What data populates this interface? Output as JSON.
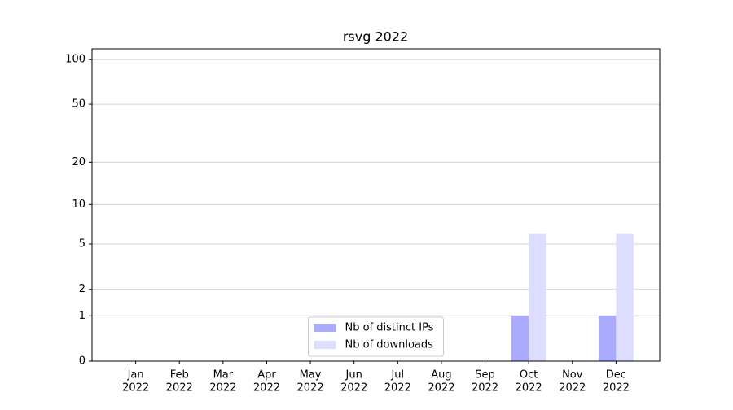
{
  "chart_data": {
    "type": "bar",
    "title": "rsvg 2022",
    "categories": [
      [
        "Jan",
        "2022"
      ],
      [
        "Feb",
        "2022"
      ],
      [
        "Mar",
        "2022"
      ],
      [
        "Apr",
        "2022"
      ],
      [
        "May",
        "2022"
      ],
      [
        "Jun",
        "2022"
      ],
      [
        "Jul",
        "2022"
      ],
      [
        "Aug",
        "2022"
      ],
      [
        "Sep",
        "2022"
      ],
      [
        "Oct",
        "2022"
      ],
      [
        "Nov",
        "2022"
      ],
      [
        "Dec",
        "2022"
      ]
    ],
    "series": [
      {
        "name": "Nb of distinct IPs",
        "color": "#aaaaff",
        "values": [
          0,
          0,
          0,
          0,
          0,
          0,
          0,
          0,
          0,
          1,
          0,
          1
        ]
      },
      {
        "name": "Nb of downloads",
        "color": "#ddddff",
        "values": [
          0,
          0,
          0,
          0,
          0,
          0,
          0,
          0,
          0,
          6,
          0,
          6
        ]
      }
    ],
    "yscale": "log1p",
    "ylim": [
      0,
      118
    ],
    "yticks": [
      0,
      1,
      2,
      5,
      10,
      20,
      50,
      100
    ],
    "grid": true,
    "legend": "lower center"
  }
}
